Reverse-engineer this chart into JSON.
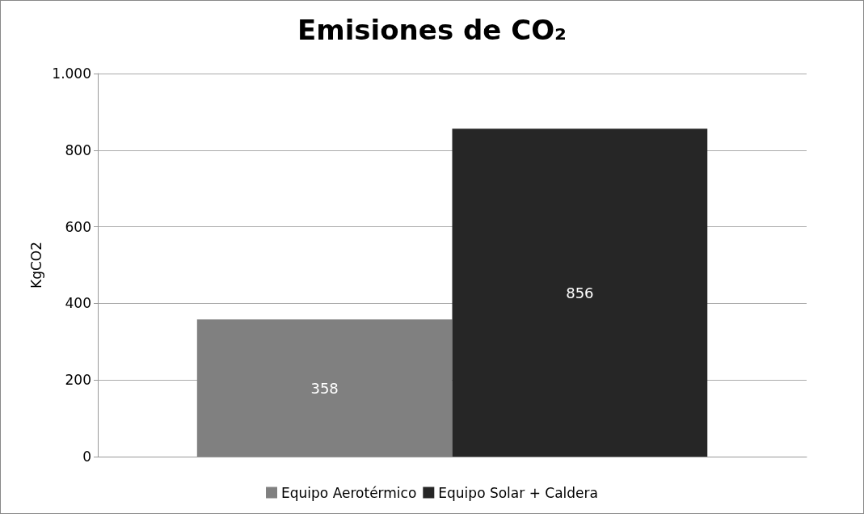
{
  "chart_data": {
    "type": "bar",
    "title": "Emisiones de CO₂",
    "ylabel": "KgCO2",
    "categories": [
      null
    ],
    "series": [
      {
        "name": "Equipo Aerotérmico",
        "color": "#808080",
        "values": [
          358
        ]
      },
      {
        "name": "Equipo Solar + Caldera",
        "color": "#262626",
        "values": [
          856
        ]
      }
    ],
    "ylim": [
      0,
      1000
    ],
    "yticks": [
      0,
      200,
      400,
      600,
      800,
      {
        "value": 1000,
        "label": "1.000"
      }
    ],
    "grid": "y",
    "legend": "bottom",
    "data_labels": true
  }
}
